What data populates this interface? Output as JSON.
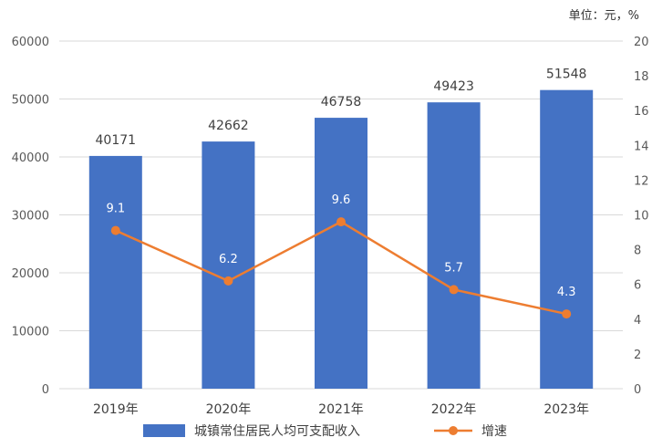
{
  "unit_label": "单位：元，%",
  "chart_data": {
    "type": "bar",
    "categories": [
      "2019年",
      "2020年",
      "2021年",
      "2022年",
      "2023年"
    ],
    "series": [
      {
        "name": "城镇常住居民人均可支配收入",
        "type": "bar",
        "axis": "left",
        "values": [
          40171,
          42662,
          46758,
          49423,
          51548
        ],
        "color": "#4472C4"
      },
      {
        "name": "增速",
        "type": "line",
        "axis": "right",
        "values": [
          9.1,
          6.2,
          9.6,
          5.7,
          4.3
        ],
        "color": "#ED7D31"
      }
    ],
    "y_left": {
      "min": 0,
      "max": 60000,
      "ticks": [
        0,
        10000,
        20000,
        30000,
        40000,
        50000,
        60000
      ]
    },
    "y_right": {
      "min": 0,
      "max": 20,
      "ticks": [
        0,
        2,
        4,
        6,
        8,
        10,
        12,
        14,
        16,
        18,
        20
      ]
    },
    "grid": true,
    "legend": "bottom",
    "data_labels": true
  }
}
